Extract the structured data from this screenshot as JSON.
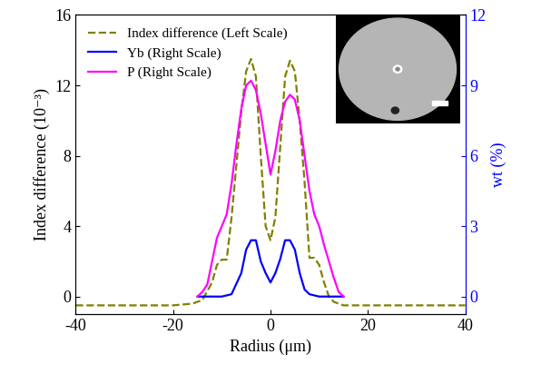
{
  "chart_data": {
    "type": "line",
    "x_label": "Radius (μm)",
    "y_label": "Index difference (10⁻³)",
    "y2_label": "wt (%)",
    "xlim": [
      -40,
      40
    ],
    "xticks": [
      -40,
      -20,
      0,
      20,
      40
    ],
    "ylim": [
      -1,
      16
    ],
    "yticks": [
      0,
      4,
      8,
      12,
      16
    ],
    "y2lim": [
      -0.75,
      12
    ],
    "y2ticks": [
      0,
      3,
      6,
      9,
      12
    ],
    "legend": "upper left",
    "series": [
      {
        "name": "Index difference (Left Scale)",
        "color": "#808000",
        "line_style": "dashed",
        "axis": "y",
        "x": [
          -40,
          -20,
          -16,
          -14,
          -12,
          -11,
          -10,
          -9,
          -8,
          -7,
          -6,
          -5,
          -4,
          -3,
          -2,
          -1,
          0,
          1,
          2,
          3,
          4,
          5,
          6,
          7,
          8,
          9,
          10,
          11,
          12,
          13,
          15,
          20,
          40
        ],
        "values": [
          -0.5,
          -0.5,
          -0.4,
          -0.2,
          0.8,
          1.8,
          2.1,
          2.1,
          4.5,
          7.5,
          10.5,
          12.8,
          13.5,
          12.5,
          8,
          4,
          3.2,
          4.5,
          8.5,
          12.5,
          13.4,
          12.8,
          10,
          6.5,
          2.2,
          2.2,
          1.8,
          0.8,
          0,
          -0.3,
          -0.5,
          -0.5,
          -0.5
        ]
      },
      {
        "name": "Yb (Right Scale)",
        "color": "#0000ff",
        "line_style": "solid",
        "axis": "y2",
        "x": [
          -15,
          -10,
          -8,
          -6,
          -5,
          -4,
          -3,
          -2,
          -1,
          0,
          1,
          2,
          3,
          4,
          5,
          6,
          7,
          8,
          10,
          15
        ],
        "values": [
          0,
          0,
          0.1,
          1.0,
          2.0,
          2.4,
          2.4,
          1.5,
          1.0,
          0.6,
          1.0,
          1.6,
          2.4,
          2.4,
          2.0,
          1.0,
          0.3,
          0.1,
          0,
          0
        ]
      },
      {
        "name": "P (Right Scale)",
        "color": "#ff00ff",
        "line_style": "solid",
        "axis": "y2",
        "x": [
          -15,
          -14,
          -13,
          -12,
          -11,
          -10,
          -9,
          -8,
          -7,
          -6,
          -5,
          -4,
          -3,
          -2,
          -1,
          0,
          1,
          2,
          3,
          4,
          5,
          6,
          7,
          8,
          9,
          10,
          11,
          12,
          13,
          14,
          15
        ],
        "values": [
          0,
          0.2,
          0.5,
          1.5,
          2.5,
          3.0,
          3.5,
          4.8,
          6.5,
          8.0,
          9.0,
          9.2,
          8.8,
          7.8,
          6.5,
          5.2,
          6.2,
          7.5,
          8.3,
          8.6,
          8.4,
          7.5,
          6.0,
          4.5,
          3.5,
          3.0,
          2.2,
          1.5,
          0.8,
          0.2,
          0
        ]
      }
    ]
  }
}
